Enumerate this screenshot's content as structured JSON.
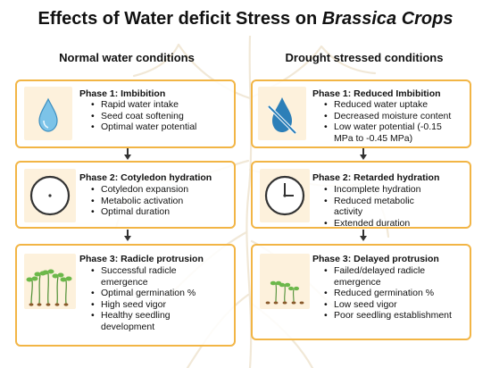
{
  "title": {
    "main": "Effects of Water deficit Stress on ",
    "italic": "Brassica Crops"
  },
  "columns": [
    {
      "heading": "Normal water conditions",
      "phases": [
        {
          "title": "Phase 1: Imbibition",
          "icon": "water-drop-icon",
          "bullets": [
            "Rapid water intake",
            "Seed coat softening",
            "Optimal water potential"
          ]
        },
        {
          "title": "Phase 2: Cotyledon hydration",
          "icon": "clock-icon",
          "bullets": [
            "Cotyledon expansion",
            "Metabolic activation",
            "Optimal  duration"
          ]
        },
        {
          "title": "Phase 3: Radicle protrusion",
          "icon": "healthy-seedlings-icon",
          "bullets": [
            "Successful radicle",
            "emergence",
            "Optimal germination %",
            "High seed vigor",
            "Healthy seedling",
            "development"
          ]
        }
      ]
    },
    {
      "heading": "Drought stressed conditions",
      "phases": [
        {
          "title": "Phase 1: Reduced Imbibition",
          "icon": "no-water-icon",
          "bullets": [
            "Reduced water uptake",
            "Decreased moisture content",
            "Low water potential (-0.15",
            "MPa to -0.45 MPa)"
          ]
        },
        {
          "title": "Phase 2: Retarded hydration",
          "icon": "clock-icon",
          "bullets": [
            "Incomplete hydration",
            "Reduced metabolic",
            "activity",
            "Extended duration"
          ]
        },
        {
          "title": "Phase 3: Delayed protrusion",
          "icon": "sparse-seedlings-icon",
          "bullets": [
            "Failed/delayed radicle",
            "emergence",
            "Reduced germination %",
            "Low seed vigor",
            "Poor seedling establishment"
          ]
        }
      ]
    }
  ],
  "colors": {
    "card_border": "#f2b545",
    "icon_bg": "#fdf1dc",
    "drop": "#7cc3e8",
    "drop_blocked": "#2c7fb8",
    "leaf": "#6cb84a",
    "root": "#c8b48a"
  }
}
